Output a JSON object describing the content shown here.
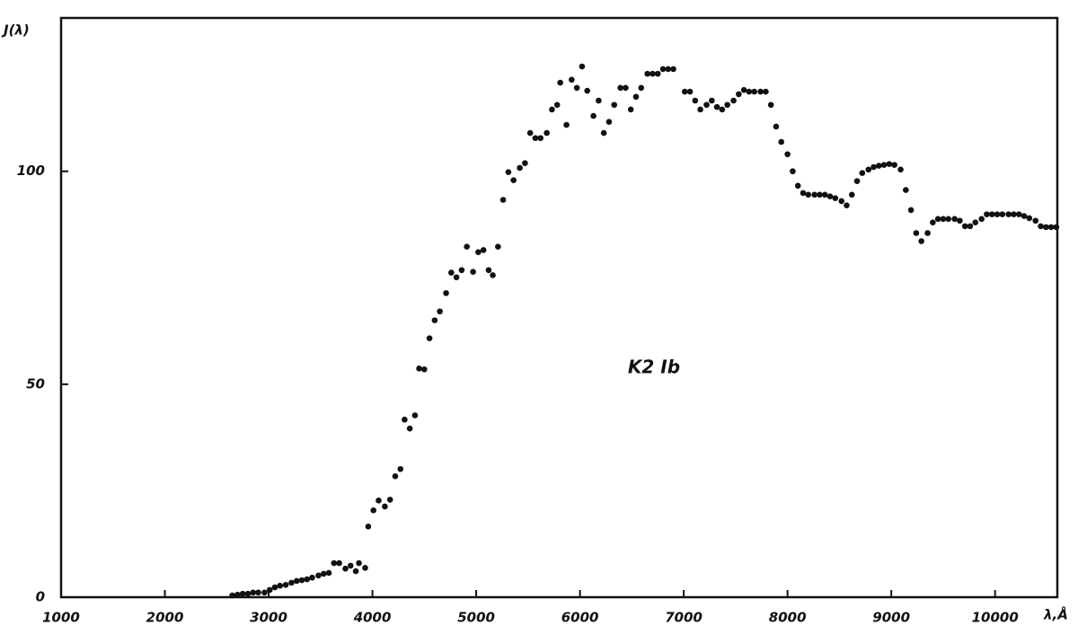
{
  "chart_data": {
    "type": "scatter",
    "annotation": "K2 Ib",
    "ylabel": "J(λ)",
    "xlabel": "λ,Å",
    "color": "#111111",
    "xlim": [
      1000,
      10600
    ],
    "ylim": [
      0,
      136
    ],
    "xticks": [
      1000,
      2000,
      3000,
      4000,
      5000,
      6000,
      7000,
      8000,
      9000,
      10000
    ],
    "yticks": [
      0,
      50,
      100
    ],
    "x": [
      2650,
      2700,
      2750,
      2800,
      2850,
      2900,
      2960,
      3010,
      3060,
      3110,
      3165,
      3220,
      3270,
      3320,
      3370,
      3420,
      3480,
      3530,
      3580,
      3630,
      3680,
      3740,
      3790,
      3840,
      3870,
      3930,
      3960,
      4010,
      4060,
      4120,
      4170,
      4220,
      4270,
      4310,
      4360,
      4410,
      4450,
      4500,
      4550,
      4600,
      4650,
      4710,
      4760,
      4810,
      4860,
      4910,
      4970,
      5020,
      5070,
      5120,
      5160,
      5210,
      5260,
      5310,
      5360,
      5420,
      5470,
      5520,
      5570,
      5620,
      5680,
      5730,
      5780,
      5810,
      5870,
      5920,
      5970,
      6020,
      6070,
      6130,
      6180,
      6230,
      6280,
      6330,
      6390,
      6440,
      6490,
      6540,
      6590,
      6650,
      6700,
      6750,
      6800,
      6850,
      6900,
      7010,
      7060,
      7110,
      7160,
      7220,
      7270,
      7320,
      7370,
      7420,
      7480,
      7530,
      7580,
      7630,
      7680,
      7740,
      7790,
      7840,
      7890,
      7940,
      8000,
      8050,
      8100,
      8150,
      8200,
      8260,
      8310,
      8360,
      8410,
      8460,
      8520,
      8570,
      8620,
      8670,
      8720,
      8780,
      8830,
      8880,
      8930,
      8980,
      9030,
      9090,
      9140,
      9190,
      9240,
      9290,
      9350,
      9400,
      9450,
      9500,
      9550,
      9610,
      9660,
      9710,
      9760,
      9810,
      9870,
      9920,
      9970,
      10020,
      10070,
      10130,
      10180,
      10230,
      10280,
      10330,
      10390,
      10440,
      10490,
      10540,
      10590
    ],
    "values": [
      0.4,
      0.6,
      0.8,
      0.8,
      1.1,
      1.1,
      1.1,
      1.7,
      2.3,
      2.7,
      2.9,
      3.4,
      3.8,
      4.0,
      4.2,
      4.6,
      5.1,
      5.5,
      5.7,
      8.0,
      8.0,
      6.7,
      7.4,
      6.1,
      8.0,
      6.9,
      16.6,
      20.4,
      22.7,
      21.3,
      22.9,
      28.4,
      30.1,
      41.7,
      39.6,
      42.7,
      53.7,
      53.5,
      60.8,
      65.0,
      67.1,
      71.4,
      76.2,
      75.1,
      76.8,
      82.3,
      76.4,
      81.0,
      81.5,
      76.8,
      75.6,
      82.3,
      93.3,
      99.8,
      97.9,
      100.8,
      101.9,
      109.0,
      107.8,
      107.8,
      109.0,
      114.5,
      115.6,
      120.8,
      110.9,
      121.5,
      119.6,
      124.6,
      118.9,
      113.0,
      116.6,
      109.0,
      111.6,
      115.6,
      119.6,
      119.6,
      114.5,
      117.5,
      119.6,
      122.9,
      122.9,
      122.9,
      124.0,
      124.0,
      124.0,
      118.7,
      118.7,
      116.6,
      114.5,
      115.6,
      116.6,
      115.1,
      114.5,
      115.6,
      116.6,
      118.1,
      119.1,
      118.7,
      118.7,
      118.7,
      118.7,
      115.6,
      110.5,
      106.9,
      104.0,
      100.0,
      96.6,
      94.9,
      94.5,
      94.5,
      94.5,
      94.5,
      94.1,
      93.7,
      93.0,
      92.0,
      94.5,
      97.7,
      99.6,
      100.4,
      101.0,
      101.3,
      101.5,
      101.7,
      101.5,
      100.4,
      95.6,
      90.9,
      85.5,
      83.6,
      85.5,
      88.0,
      88.8,
      88.8,
      88.8,
      88.8,
      88.4,
      87.1,
      87.1,
      88.0,
      88.8,
      89.9,
      89.9,
      89.9,
      89.9,
      89.9,
      89.9,
      89.9,
      89.5,
      89.0,
      88.4,
      87.1,
      86.9,
      86.9,
      86.9
    ]
  }
}
